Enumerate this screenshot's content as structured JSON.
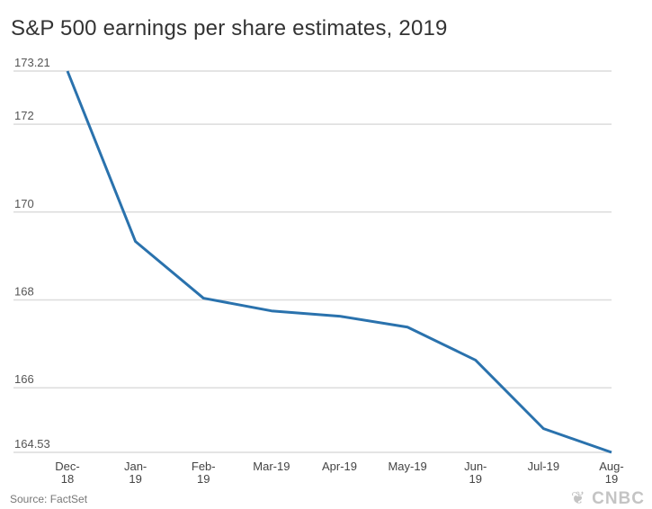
{
  "chart_data": {
    "type": "line",
    "title": "S&P 500 earnings per share estimates, 2019",
    "categories": [
      "Dec-18",
      "Jan-19",
      "Feb-19",
      "Mar-19",
      "Apr-19",
      "May-19",
      "Jun-19",
      "Jul-19",
      "Aug-19"
    ],
    "category_labels": [
      [
        "Dec-",
        "18"
      ],
      [
        "Jan-",
        "19"
      ],
      [
        "Feb-",
        "19"
      ],
      [
        "Mar-19"
      ],
      [
        "Apr-19"
      ],
      [
        "May-19"
      ],
      [
        "Jun-",
        "19"
      ],
      [
        "Jul-19"
      ],
      [
        "Aug-",
        "19"
      ]
    ],
    "values": [
      173.21,
      169.33,
      168.04,
      167.75,
      167.63,
      167.38,
      166.63,
      165.07,
      164.53
    ],
    "y_ticks": [
      173.21,
      172,
      170,
      168,
      166,
      164.53
    ],
    "y_tick_labels": [
      "173.21",
      "172",
      "170",
      "168",
      "166",
      "164.53"
    ],
    "ylim": [
      164.53,
      173.21
    ],
    "grid": "horizontal",
    "line_color": "#2a72ad",
    "grid_color": "#dcdcdc"
  },
  "source": "Source: FactSet",
  "logo": "CNBC"
}
